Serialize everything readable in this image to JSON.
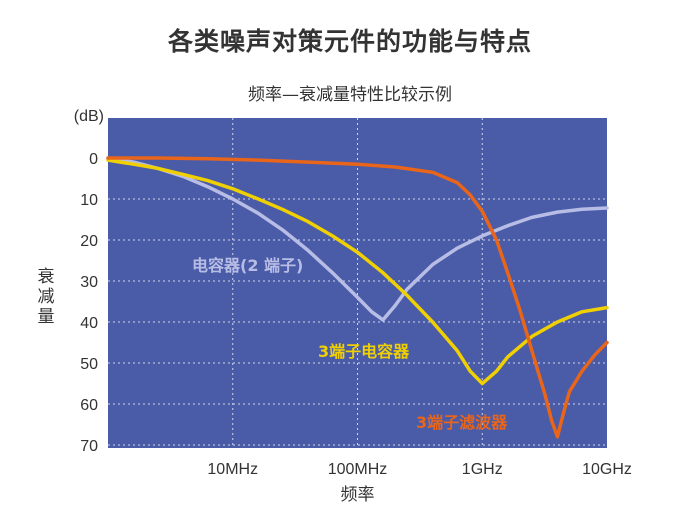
{
  "page_title": "各类噪声对策元件的功能与特点",
  "chart_data": {
    "type": "line",
    "title": "频率—衰减量特性比较示例",
    "xlabel": "频率",
    "ylabel": "衰减量",
    "yunit": "(dB)",
    "x_scale": "log",
    "xlim_hz": [
      1000000,
      10000000000
    ],
    "ylim": [
      0,
      70
    ],
    "y_inverted": true,
    "grid": true,
    "background_color": "#4a5ba8",
    "y_ticks": [
      0,
      10,
      20,
      30,
      40,
      50,
      60,
      70
    ],
    "x_ticks": [
      {
        "value": 10000000,
        "label": "10MHz"
      },
      {
        "value": 100000000,
        "label": "100MHz"
      },
      {
        "value": 1000000000,
        "label": "1GHz"
      },
      {
        "value": 10000000000,
        "label": "10GHz"
      }
    ],
    "series": [
      {
        "name": "电容器(2 端子)",
        "color": "#b8bde6",
        "x": [
          1000000,
          1600000,
          2500000,
          4000000,
          6300000,
          10000000,
          16000000,
          25000000,
          40000000,
          63000000,
          100000000,
          130000000,
          160000000,
          200000000,
          250000000,
          400000000,
          630000000,
          1000000000,
          1600000000,
          2500000000,
          4000000000,
          6300000000,
          10000000000
        ],
        "y": [
          0,
          1,
          2.5,
          4.5,
          7,
          10,
          13.5,
          17.5,
          22.5,
          28,
          34,
          37.5,
          39.5,
          36,
          32,
          26,
          22,
          19,
          16.5,
          14.5,
          13.2,
          12.5,
          12.2
        ]
      },
      {
        "name": "3端子电容器",
        "color": "#f0d000",
        "x": [
          1000000,
          1600000,
          2500000,
          4000000,
          6300000,
          10000000,
          16000000,
          25000000,
          40000000,
          63000000,
          100000000,
          160000000,
          250000000,
          400000000,
          630000000,
          800000000,
          1000000000,
          1300000000,
          1600000000,
          2500000000,
          4000000000,
          6300000000,
          10000000000
        ],
        "y": [
          0.5,
          1.5,
          2.5,
          4,
          5.5,
          7.5,
          10,
          12.5,
          15.5,
          19,
          23,
          28,
          33.5,
          40,
          47,
          52,
          55,
          52,
          48.5,
          43.5,
          40,
          37.5,
          36.5
        ]
      },
      {
        "name": "3端子滤波器",
        "color": "#e8651a",
        "x": [
          1000000,
          2500000,
          6300000,
          16000000,
          40000000,
          100000000,
          200000000,
          400000000,
          630000000,
          800000000,
          1000000000,
          1300000000,
          1600000000,
          2000000000,
          2500000000,
          3200000000,
          3600000000,
          4000000000,
          4500000000,
          5000000000,
          6300000000,
          8000000000,
          10000000000
        ],
        "y": [
          0,
          0,
          0.2,
          0.5,
          1,
          1.5,
          2.2,
          3.5,
          6,
          9,
          13,
          20,
          28,
          37,
          47,
          58,
          64,
          68,
          62,
          57,
          52,
          48,
          45
        ]
      }
    ]
  }
}
